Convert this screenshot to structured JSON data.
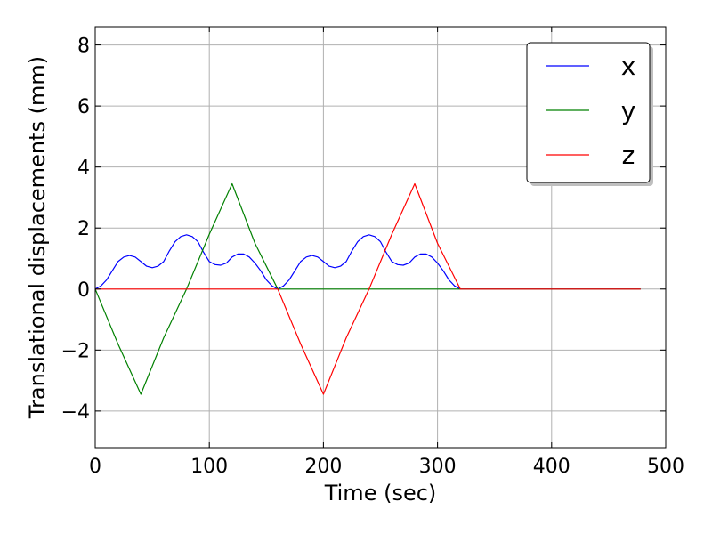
{
  "chart_data": {
    "type": "line",
    "xlabel": "Time (sec)",
    "ylabel": "Translational displacements (mm)",
    "xlim": [
      0,
      500
    ],
    "ylim": [
      -5.2,
      8.6
    ],
    "xticks": [
      0,
      100,
      200,
      300,
      400,
      500
    ],
    "yticks": [
      -4,
      -2,
      0,
      2,
      4,
      6,
      8
    ],
    "xtick_labels": [
      "0",
      "100",
      "200",
      "300",
      "400",
      "500"
    ],
    "ytick_labels": [
      "−4",
      "−2",
      "0",
      "2",
      "4",
      "6",
      "8"
    ],
    "grid": true,
    "legend_position": "top-right",
    "series": [
      {
        "name": "x",
        "color": "#0000ff",
        "x": [
          0,
          5,
          10,
          15,
          20,
          25,
          30,
          35,
          40,
          45,
          50,
          55,
          60,
          65,
          70,
          75,
          80,
          85,
          90,
          95,
          100,
          105,
          110,
          115,
          120,
          125,
          130,
          135,
          140,
          145,
          150,
          155,
          160,
          165,
          170,
          175,
          180,
          185,
          190,
          195,
          200,
          205,
          210,
          215,
          220,
          225,
          230,
          235,
          240,
          245,
          250,
          255,
          260,
          265,
          270,
          275,
          280,
          285,
          290,
          295,
          300,
          305,
          310,
          315,
          320,
          478
        ],
        "y": [
          0,
          0.1,
          0.3,
          0.6,
          0.9,
          1.05,
          1.1,
          1.05,
          0.9,
          0.75,
          0.7,
          0.75,
          0.9,
          1.25,
          1.55,
          1.72,
          1.78,
          1.72,
          1.55,
          1.2,
          0.9,
          0.8,
          0.78,
          0.85,
          1.05,
          1.15,
          1.15,
          1.05,
          0.85,
          0.6,
          0.3,
          0.1,
          0,
          0.1,
          0.3,
          0.6,
          0.9,
          1.05,
          1.1,
          1.05,
          0.9,
          0.75,
          0.7,
          0.75,
          0.9,
          1.25,
          1.55,
          1.72,
          1.78,
          1.72,
          1.55,
          1.2,
          0.9,
          0.8,
          0.78,
          0.85,
          1.05,
          1.15,
          1.15,
          1.05,
          0.85,
          0.6,
          0.3,
          0.1,
          0,
          0
        ]
      },
      {
        "name": "y",
        "color": "#008000",
        "x": [
          0,
          20,
          40,
          60,
          80,
          100,
          120,
          140,
          160,
          320,
          478
        ],
        "y": [
          0,
          -1.8,
          -3.45,
          -1.6,
          0,
          1.8,
          3.45,
          1.5,
          0,
          0,
          0
        ]
      },
      {
        "name": "z",
        "color": "#ff0000",
        "x": [
          0,
          160,
          180,
          200,
          220,
          240,
          260,
          280,
          300,
          320,
          478
        ],
        "y": [
          0,
          0,
          -1.8,
          -3.45,
          -1.6,
          0,
          1.8,
          3.45,
          1.5,
          0,
          0
        ]
      }
    ]
  }
}
